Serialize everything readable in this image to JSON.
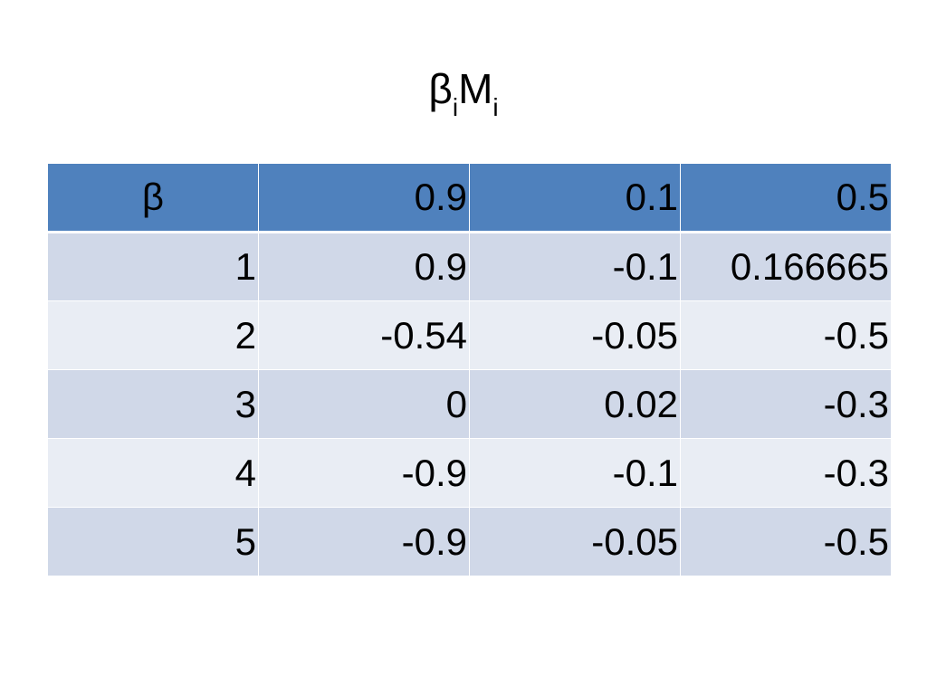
{
  "title": {
    "part1": "β",
    "sub1": "i",
    "part2": "M",
    "sub2": "i"
  },
  "table": {
    "header": [
      "β",
      "0.9",
      "0.1",
      "0.5"
    ],
    "rows": [
      [
        "1",
        "0.9",
        "-0.1",
        "0.166665"
      ],
      [
        "2",
        "-0.54",
        "-0.05",
        "-0.5"
      ],
      [
        "3",
        "0",
        "0.02",
        "-0.3"
      ],
      [
        "4",
        "-0.9",
        "-0.1",
        "-0.3"
      ],
      [
        "5",
        "-0.9",
        "-0.05",
        "-0.5"
      ]
    ]
  },
  "colors": {
    "header_bg": "#4f81bd",
    "row_odd_bg": "#d0d8e8",
    "row_even_bg": "#e9edf4"
  }
}
